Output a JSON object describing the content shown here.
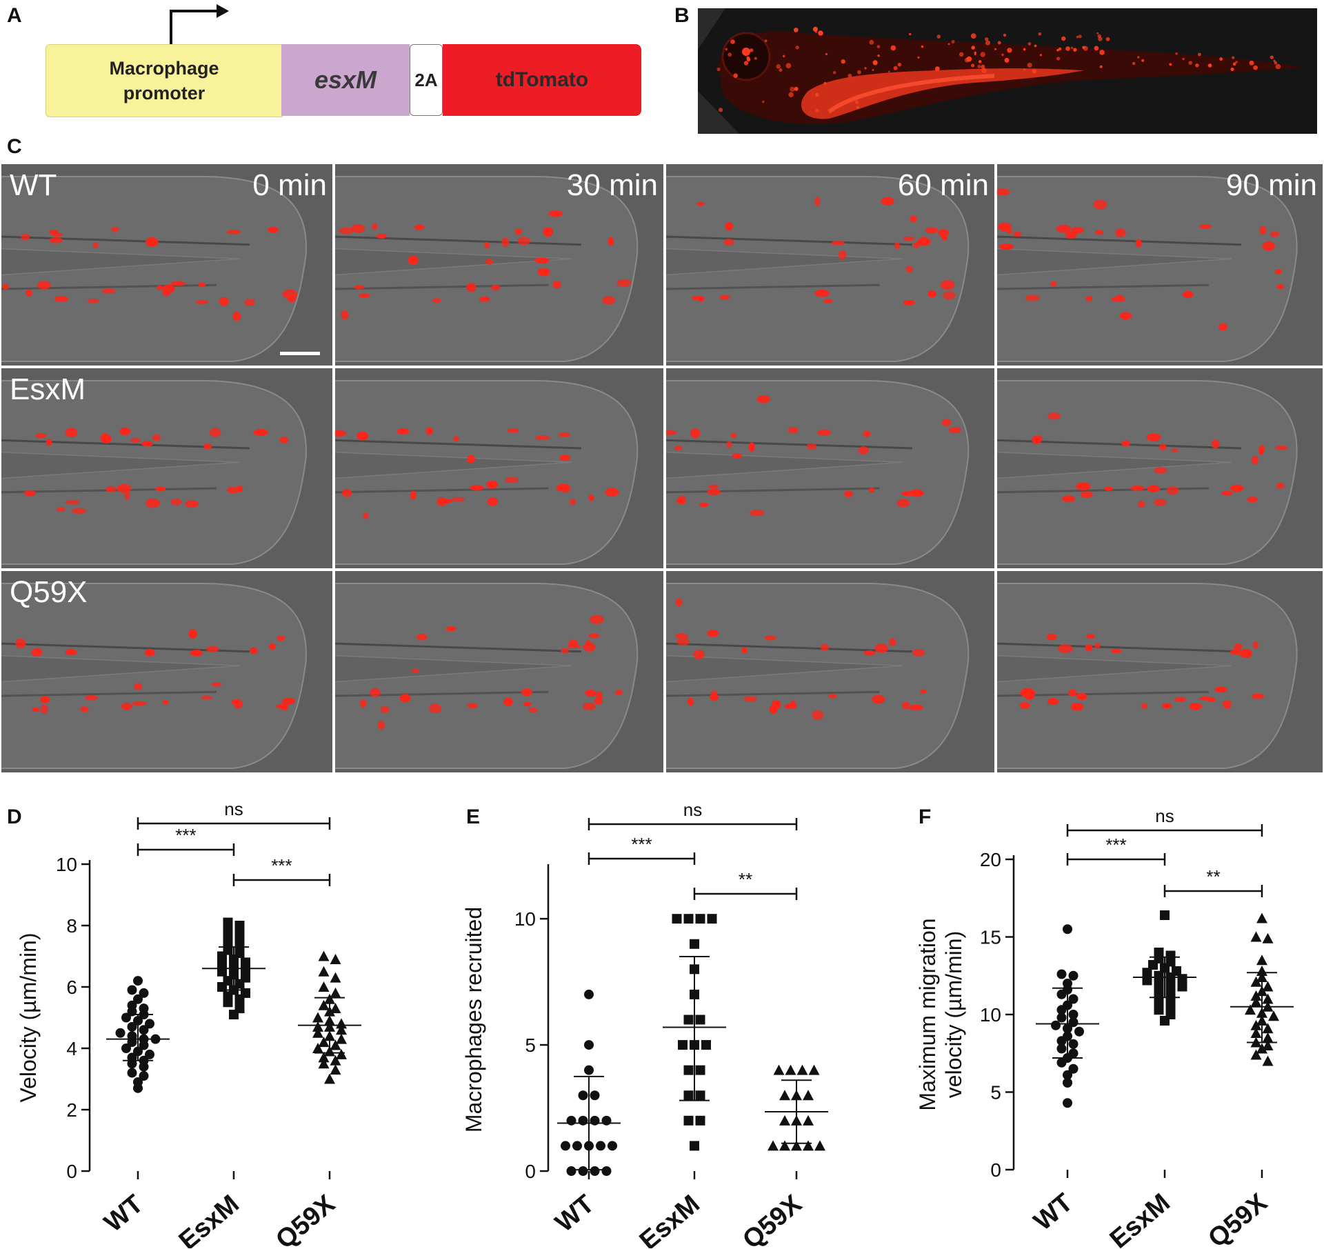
{
  "panels": {
    "A": "A",
    "B": "B",
    "C": "C",
    "D": "D",
    "E": "E",
    "F": "F"
  },
  "construct": {
    "promoter_line1": "Macrophage",
    "promoter_line2": "promoter",
    "gene": "esxM",
    "linker": "2A",
    "reporter": "tdTomato",
    "colors": {
      "promoter": "#f8f29a",
      "gene": "#cba6cf",
      "linker": "#ffffff",
      "reporter": "#ee1c24"
    }
  },
  "microscopy": {
    "rows": [
      "WT",
      "EsxM",
      "Q59X"
    ],
    "timepoints": [
      "0 min",
      "30 min",
      "60 min",
      "90 min"
    ]
  },
  "chart_data": [
    {
      "panel": "D",
      "type": "scatter",
      "ylabel": "Velocity (µm/min)",
      "ylim": [
        0,
        10
      ],
      "yticks": [
        0,
        2,
        4,
        6,
        8,
        10
      ],
      "categories": [
        "WT",
        "EsxM",
        "Q59X"
      ],
      "markers": [
        "circle",
        "square",
        "triangle"
      ],
      "means": [
        4.3,
        6.6,
        4.75
      ],
      "sd_upper": [
        5.1,
        7.3,
        5.65
      ],
      "sd_lower": [
        3.6,
        5.9,
        3.85
      ],
      "points": [
        [
          6.2,
          5.9,
          5.8,
          5.6,
          5.4,
          5.3,
          5.2,
          5.1,
          5.0,
          4.9,
          4.8,
          4.7,
          4.6,
          4.5,
          4.4,
          4.3,
          4.3,
          4.2,
          4.1,
          4.0,
          3.9,
          3.8,
          3.7,
          3.6,
          3.5,
          3.4,
          3.2,
          3.1,
          2.9,
          2.7
        ],
        [
          8.1,
          8.0,
          7.9,
          7.8,
          7.6,
          7.5,
          7.4,
          7.3,
          7.2,
          7.1,
          7.0,
          6.9,
          6.8,
          6.7,
          6.6,
          6.6,
          6.5,
          6.4,
          6.3,
          6.2,
          6.1,
          6.0,
          5.9,
          5.8,
          5.7,
          5.6,
          5.5,
          5.3,
          5.1
        ],
        [
          7.0,
          6.9,
          6.5,
          6.3,
          6.0,
          5.8,
          5.6,
          5.4,
          5.3,
          5.2,
          5.0,
          4.9,
          4.8,
          4.7,
          4.7,
          4.6,
          4.5,
          4.4,
          4.3,
          4.2,
          4.1,
          4.0,
          3.9,
          3.8,
          3.7,
          3.6,
          3.5,
          3.3,
          3.0
        ]
      ],
      "comparisons": [
        {
          "from": 0,
          "to": 2,
          "label": "ns",
          "level": 2
        },
        {
          "from": 0,
          "to": 1,
          "label": "***",
          "level": 1
        },
        {
          "from": 1,
          "to": 2,
          "label": "***",
          "level": 0
        }
      ]
    },
    {
      "panel": "E",
      "type": "scatter",
      "ylabel": "Macrophages recruited",
      "ylim": [
        0,
        12
      ],
      "yticks": [
        0,
        5,
        10
      ],
      "categories": [
        "WT",
        "EsxM",
        "Q59X"
      ],
      "markers": [
        "circle",
        "square",
        "triangle"
      ],
      "means": [
        1.9,
        5.7,
        2.35
      ],
      "sd_upper": [
        3.75,
        8.5,
        3.6
      ],
      "sd_lower": [
        0.05,
        2.8,
        1.1
      ],
      "points": [
        [
          7,
          5,
          4,
          3,
          3,
          2,
          2,
          2,
          2,
          1,
          1,
          1,
          1,
          1,
          0,
          0,
          0,
          0
        ],
        [
          10,
          10,
          10,
          10,
          9,
          8,
          7,
          6,
          6,
          5,
          5,
          5,
          4,
          4,
          3,
          3,
          2,
          2,
          1
        ],
        [
          4,
          4,
          4,
          4,
          3,
          3,
          3,
          2,
          2,
          2,
          1,
          1,
          1,
          1,
          1
        ]
      ],
      "comparisons": [
        {
          "from": 0,
          "to": 2,
          "label": "ns",
          "level": 2
        },
        {
          "from": 0,
          "to": 1,
          "label": "***",
          "level": 1
        },
        {
          "from": 1,
          "to": 2,
          "label": "**",
          "level": 0
        }
      ]
    },
    {
      "panel": "F",
      "type": "scatter",
      "ylabel": "Maximum migration velocity (µm/min)",
      "ylabel_lines": [
        "Maximum migration",
        "velocity (µm/min)"
      ],
      "ylim": [
        0,
        20
      ],
      "yticks": [
        0,
        5,
        10,
        15,
        20
      ],
      "categories": [
        "WT",
        "EsxM",
        "Q59X"
      ],
      "markers": [
        "circle",
        "square",
        "triangle"
      ],
      "means": [
        9.4,
        12.4,
        10.5
      ],
      "sd_upper": [
        11.7,
        13.7,
        12.7
      ],
      "sd_lower": [
        7.2,
        11.1,
        8.2
      ],
      "points": [
        [
          15.5,
          12.6,
          12.5,
          12.0,
          11.6,
          11.3,
          11.0,
          10.6,
          10.3,
          10.0,
          9.8,
          9.5,
          9.3,
          9.1,
          8.9,
          8.6,
          8.3,
          8.1,
          7.8,
          7.5,
          7.2,
          6.9,
          6.5,
          6.1,
          5.6,
          4.3
        ],
        [
          16.4,
          14.0,
          13.8,
          13.6,
          13.4,
          13.2,
          13.0,
          12.8,
          12.7,
          12.5,
          12.4,
          12.3,
          12.2,
          12.0,
          11.9,
          11.8,
          11.6,
          11.4,
          11.2,
          11.0,
          10.8,
          10.6,
          10.3,
          10.0,
          9.6
        ],
        [
          16.2,
          15.0,
          14.9,
          13.5,
          12.8,
          12.4,
          12.1,
          11.8,
          11.5,
          11.2,
          11.0,
          10.8,
          10.5,
          10.3,
          10.1,
          9.9,
          9.6,
          9.3,
          9.1,
          8.8,
          8.5,
          8.2,
          8.0,
          7.8,
          7.4,
          7.0
        ]
      ],
      "comparisons": [
        {
          "from": 0,
          "to": 2,
          "label": "ns",
          "level": 2
        },
        {
          "from": 0,
          "to": 1,
          "label": "***",
          "level": 1
        },
        {
          "from": 1,
          "to": 2,
          "label": "**",
          "level": 0
        }
      ]
    }
  ]
}
